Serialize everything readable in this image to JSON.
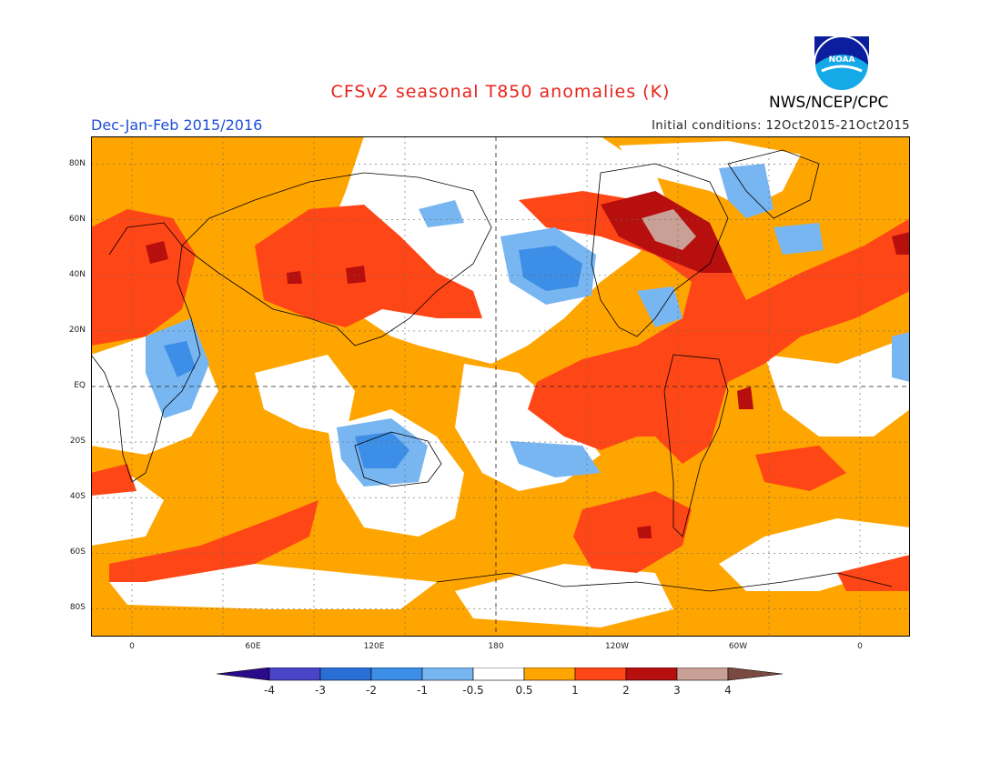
{
  "header": {
    "title": "CFSv2 seasonal T850 anomalies (K)",
    "season": "Dec-Jan-Feb 2015/2016",
    "initial_conditions": "Initial conditions: 12Oct2015-21Oct2015",
    "agency": "NWS/NCEP/CPC",
    "logo_text": "NOAA"
  },
  "axes": {
    "lat_labels": [
      "80N",
      "60N",
      "40N",
      "20N",
      "EQ",
      "20S",
      "40S",
      "60S",
      "80S"
    ],
    "lon_labels": [
      "0",
      "60E",
      "120E",
      "180",
      "120W",
      "60W",
      "0"
    ]
  },
  "colorbar": {
    "labels": [
      "-4",
      "-3",
      "-2",
      "-1",
      "-0.5",
      "0.5",
      "1",
      "2",
      "3",
      "4"
    ],
    "colors": [
      "#2a0c8a",
      "#4a44c8",
      "#2a6fd6",
      "#3c8ee6",
      "#78b6f2",
      "#ffffff",
      "#ffa500",
      "#ff4616",
      "#b70e0e",
      "#c9a096",
      "#7a4a40"
    ]
  },
  "colors": {
    "title": "#e8231c",
    "season": "#1f4fd6",
    "land_outline": "#000000"
  }
}
